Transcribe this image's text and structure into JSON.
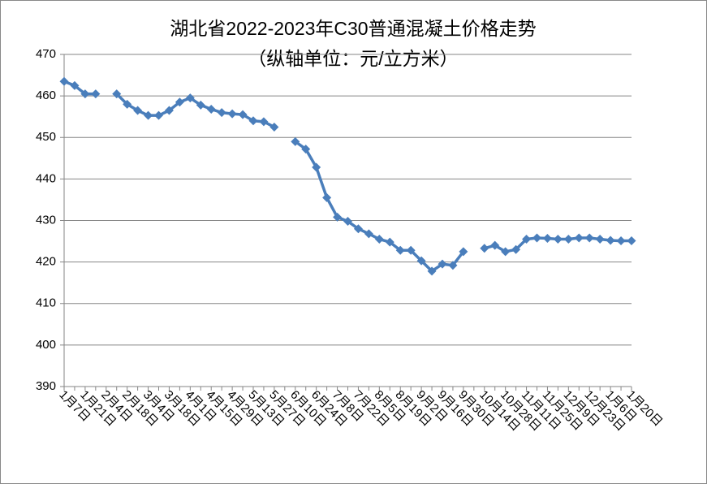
{
  "chart_data": {
    "type": "line",
    "title": "湖北省2022-2023年C30普通混凝土价格走势",
    "subtitle": "（纵轴单位：元/立方米）",
    "categories": [
      "1月7日",
      null,
      "1月21日",
      null,
      "2月4日",
      null,
      "2月18日",
      null,
      "3月4日",
      null,
      "3月18日",
      null,
      "4月1日",
      null,
      "4月15日",
      null,
      "4月29日",
      null,
      "5月13日",
      null,
      "5月27日",
      null,
      "6月10日",
      null,
      "6月24日",
      null,
      "7月8日",
      null,
      "7月22日",
      null,
      "8月5日",
      null,
      "8月19日",
      null,
      "9月2日",
      null,
      "9月16日",
      null,
      "9月30日",
      null,
      "10月14日",
      null,
      "10月28日",
      null,
      "11月11日",
      null,
      "11月25日",
      null,
      "12月9日",
      null,
      "12月23日",
      null,
      "1月6日",
      null,
      "1月20日"
    ],
    "series": [
      {
        "name": "C30",
        "color": "#4a7ebb",
        "values": [
          463.5,
          462.5,
          460.5,
          460.5,
          null,
          460.5,
          458,
          456.5,
          455.3,
          455.3,
          456.5,
          458.5,
          459.5,
          457.8,
          456.8,
          456,
          455.7,
          455.5,
          454,
          453.8,
          452.5,
          null,
          449,
          447.2,
          442.8,
          435.5,
          430.8,
          429.8,
          428,
          426.8,
          425.5,
          424.8,
          422.8,
          422.8,
          420.3,
          417.8,
          419.5,
          419.2,
          422.5,
          null,
          423.3,
          424,
          422.5,
          423,
          425.5,
          425.8,
          425.7,
          425.5,
          425.5,
          425.8,
          425.8,
          425.5,
          425.2,
          425.1,
          425.1
        ]
      }
    ],
    "ylim": [
      390,
      470
    ],
    "yticks": [
      390,
      400,
      410,
      420,
      430,
      440,
      450,
      460,
      470
    ],
    "grid": true
  }
}
